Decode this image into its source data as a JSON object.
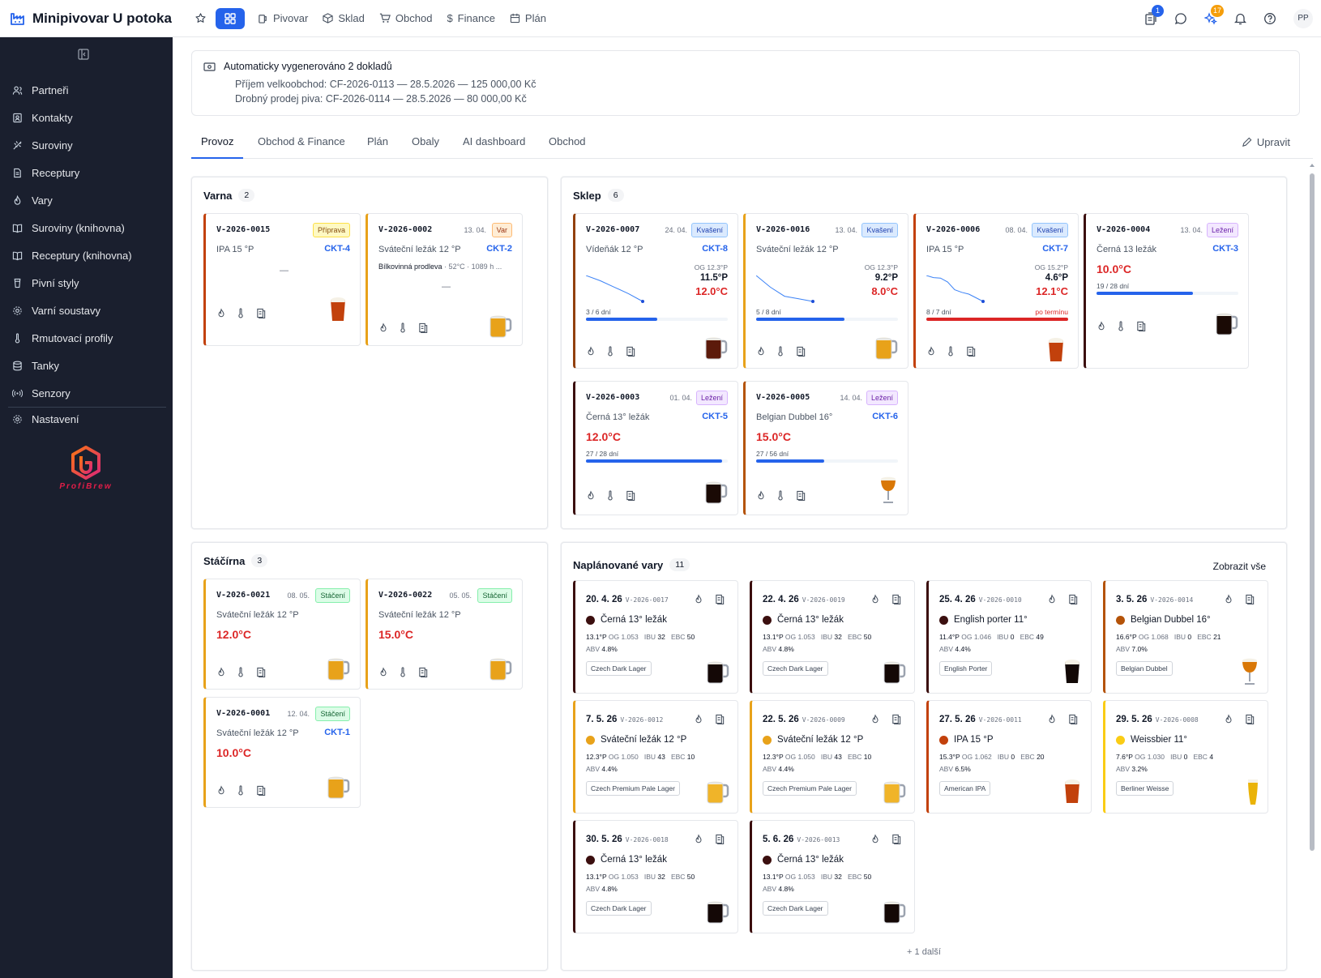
{
  "app": {
    "title": "Minipivovar U potoka"
  },
  "nav": [
    "Pivovar",
    "Sklad",
    "Obchod",
    "Finance",
    "Plán"
  ],
  "header": {
    "badge_docs": "1",
    "badge_ai": "17",
    "avatar": "PP"
  },
  "sidebar": {
    "items": [
      "Partneři",
      "Kontakty",
      "Suroviny",
      "Receptury",
      "Vary",
      "Suroviny (knihovna)",
      "Receptury (knihovna)",
      "Pivní styly",
      "Varní soustavy",
      "Rmutovací profily",
      "Tanky",
      "Senzory"
    ],
    "settings": "Nastavení",
    "logo_text": "ProfiBrew"
  },
  "notice": {
    "title": "Automaticky vygenerováno 2 dokladů",
    "lines": [
      "Příjem velkoobchod: CF-2026-0113 — 28.5.2026 — 125 000,00 Kč",
      "Drobný prodej piva: CF-2026-0114 — 28.5.2026 — 80 000,00 Kč"
    ]
  },
  "tabs": [
    "Provoz",
    "Obchod & Finance",
    "Plán",
    "Obaly",
    "AI dashboard",
    "Obchod"
  ],
  "edit_label": "Upravit",
  "varna": {
    "title": "Varna",
    "count": "2",
    "cards": [
      {
        "id": "V-2026-0015",
        "date": "",
        "status": "Příprava",
        "beer": "IPA 15 °P",
        "tank": "CKT-4",
        "dash": "—"
      },
      {
        "id": "V-2026-0002",
        "date": "13. 04.",
        "status": "Var",
        "beer": "Sváteční ležák 12 °P",
        "tank": "CKT-2",
        "step": "Bílkovinná prodleva",
        "step_detail": " · 52°C · 1089 h ...",
        "dash": "—"
      }
    ]
  },
  "sklep": {
    "title": "Sklep",
    "count": "6",
    "cards": [
      {
        "id": "V-2026-0007",
        "date": "24. 04.",
        "status": "Kvašení",
        "beer": "Vídeňák 12 °P",
        "tank": "CKT-8",
        "og": "OG 12.3°P",
        "gravity": "11.5°P",
        "temp": "12.0°C",
        "fill": "3 / 6 dní",
        "progress": 0.5,
        "overdue": ""
      },
      {
        "id": "V-2026-0016",
        "date": "13. 04.",
        "status": "Kvašení",
        "beer": "Sváteční ležák 12 °P",
        "tank": "",
        "og": "OG 12.3°P",
        "gravity": "9.2°P",
        "temp": "8.0°C",
        "fill": "5 / 8 dní",
        "progress": 0.625,
        "overdue": ""
      },
      {
        "id": "V-2026-0006",
        "date": "08. 04.",
        "status": "Kvašení",
        "beer": "IPA 15 °P",
        "tank": "CKT-7",
        "og": "OG 15.2°P",
        "gravity": "4.6°P",
        "temp": "12.1°C",
        "fill": "8 / 7 dní",
        "progress": 1,
        "overdue": "po termínu"
      },
      {
        "id": "V-2026-0004",
        "date": "13. 04.",
        "status": "Ležení",
        "beer": "Černá 13 ležák",
        "tank": "CKT-3",
        "temp": "10.0°C",
        "fill": "19 / 28 dní",
        "progress": 0.68
      },
      {
        "id": "V-2026-0003",
        "date": "01. 04.",
        "status": "Ležení",
        "beer": "Černá 13° ležák",
        "tank": "CKT-5",
        "temp": "12.0°C",
        "fill": "27 / 28 dní",
        "progress": 0.96
      },
      {
        "id": "V-2026-0005",
        "date": "14. 04.",
        "status": "Ležení",
        "beer": "Belgian Dubbel 16°",
        "tank": "CKT-6",
        "temp": "15.0°C",
        "fill": "27 / 56 dní",
        "progress": 0.48
      }
    ]
  },
  "stacirna": {
    "title": "Stáčírna",
    "count": "3",
    "cards": [
      {
        "id": "V-2026-0021",
        "date": "08. 05.",
        "status": "Stáčení",
        "beer": "Sváteční ležák 12 °P",
        "tank": "",
        "temp": "12.0°C"
      },
      {
        "id": "V-2026-0022",
        "date": "05. 05.",
        "status": "Stáčení",
        "beer": "Sváteční ležák 12 °P",
        "tank": "",
        "temp": "15.0°C"
      },
      {
        "id": "V-2026-0001",
        "date": "12. 04.",
        "status": "Stáčení",
        "beer": "Sváteční ležák 12 °P",
        "tank": "CKT-1",
        "temp": "10.0°C"
      }
    ]
  },
  "planned": {
    "title": "Naplánované vary",
    "count": "11",
    "show_all": "Zobrazit vše",
    "more": "+ 1 další",
    "labels": {
      "og": "OG",
      "ibu": "IBU",
      "ebc": "EBC",
      "abv": "ABV"
    },
    "cards": [
      {
        "date": "20. 4. 26",
        "id": "V-2026-0017",
        "beer": "Černá 13° ležák",
        "plato": "13.1°P",
        "og": "1.053",
        "ibu": "32",
        "ebc": "50",
        "abv": "4.8%",
        "style": "Czech Dark Lager",
        "color": "#3b0f0f"
      },
      {
        "date": "22. 4. 26",
        "id": "V-2026-0019",
        "beer": "Černá 13° ležák",
        "plato": "13.1°P",
        "og": "1.053",
        "ibu": "32",
        "ebc": "50",
        "abv": "4.8%",
        "style": "Czech Dark Lager",
        "color": "#3b0f0f"
      },
      {
        "date": "25. 4. 26",
        "id": "V-2026-0010",
        "beer": "English porter 11°",
        "plato": "11.4°P",
        "og": "1.046",
        "ibu": "0",
        "ebc": "49",
        "abv": "4.4%",
        "style": "English Porter",
        "color": "#3b0f0f"
      },
      {
        "date": "3. 5. 26",
        "id": "V-2026-0014",
        "beer": "Belgian Dubbel 16°",
        "plato": "16.6°P",
        "og": "1.068",
        "ibu": "0",
        "ebc": "21",
        "abv": "7.0%",
        "style": "Belgian Dubbel",
        "color": "#b45309"
      },
      {
        "date": "7. 5. 26",
        "id": "V-2026-0012",
        "beer": "Sváteční ležák 12 °P",
        "plato": "12.3°P",
        "og": "1.050",
        "ibu": "43",
        "ebc": "10",
        "abv": "4.4%",
        "style": "Czech Premium Pale Lager",
        "color": "#e8a21a"
      },
      {
        "date": "22. 5. 26",
        "id": "V-2026-0009",
        "beer": "Sváteční ležák 12 °P",
        "plato": "12.3°P",
        "og": "1.050",
        "ibu": "43",
        "ebc": "10",
        "abv": "4.4%",
        "style": "Czech Premium Pale Lager",
        "color": "#e8a21a"
      },
      {
        "date": "27. 5. 26",
        "id": "V-2026-0011",
        "beer": "IPA 15 °P",
        "plato": "15.3°P",
        "og": "1.062",
        "ibu": "0",
        "ebc": "20",
        "abv": "6.5%",
        "style": "American IPA",
        "color": "#c2410c"
      },
      {
        "date": "29. 5. 26",
        "id": "V-2026-0008",
        "beer": "Weissbier 11°",
        "plato": "7.6°P",
        "og": "1.030",
        "ibu": "0",
        "ebc": "4",
        "abv": "3.2%",
        "style": "Berliner Weisse",
        "color": "#facc15"
      },
      {
        "date": "30. 5. 26",
        "id": "V-2026-0018",
        "beer": "Černá 13° ležák",
        "plato": "13.1°P",
        "og": "1.053",
        "ibu": "32",
        "ebc": "50",
        "abv": "4.8%",
        "style": "Czech Dark Lager",
        "color": "#3b0f0f"
      },
      {
        "date": "5. 6. 26",
        "id": "V-2026-0013",
        "beer": "Černá 13° ležák",
        "plato": "13.1°P",
        "og": "1.053",
        "ibu": "32",
        "ebc": "50",
        "abv": "4.8%",
        "style": "Czech Dark Lager",
        "color": "#3b0f0f"
      }
    ]
  },
  "colors": {
    "accent": "#2563eb",
    "danger": "#dc2626",
    "sidebar_bg": "#1a1f2e",
    "dark_beer": "#3b0f0f",
    "amber_beer": "#c2410c",
    "pale_beer": "#e8a21a"
  }
}
